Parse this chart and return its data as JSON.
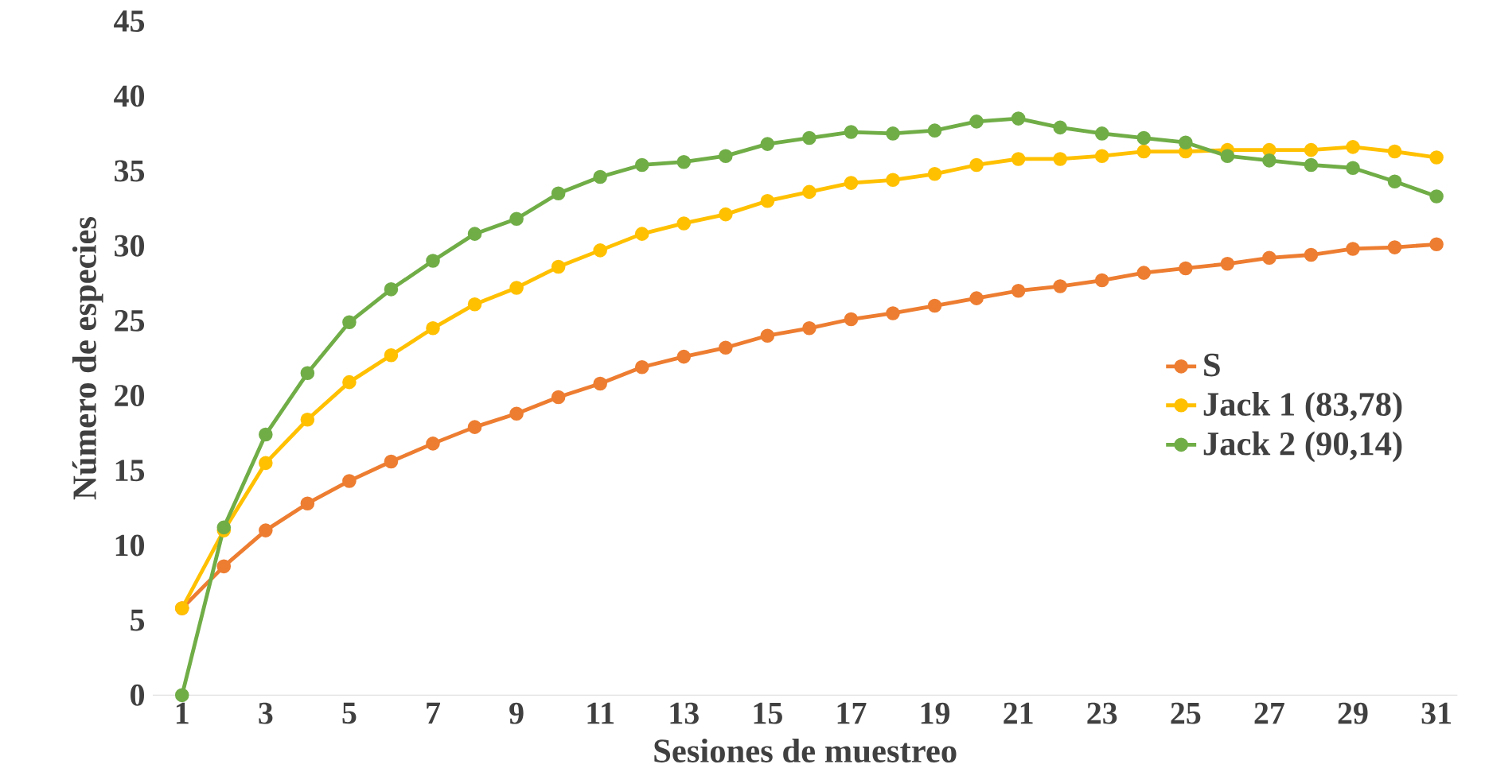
{
  "chart_data": {
    "type": "line",
    "xlabel": "Sesiones de muestreo",
    "ylabel": "Número de especies",
    "x": [
      1,
      2,
      3,
      4,
      5,
      6,
      7,
      8,
      9,
      10,
      11,
      12,
      13,
      14,
      15,
      16,
      17,
      18,
      19,
      20,
      21,
      22,
      23,
      24,
      25,
      26,
      27,
      28,
      29,
      30,
      31
    ],
    "xlim": [
      0.3,
      31.5
    ],
    "xticks": [
      1,
      3,
      5,
      7,
      9,
      11,
      13,
      15,
      17,
      19,
      21,
      23,
      25,
      27,
      29,
      31
    ],
    "ylim": [
      0,
      45
    ],
    "yticks": [
      0,
      5,
      10,
      15,
      20,
      25,
      30,
      35,
      40,
      45
    ],
    "series": [
      {
        "name": "S",
        "color": "#ed7d31",
        "values": [
          5.8,
          8.6,
          11,
          12.8,
          14.3,
          15.6,
          16.8,
          17.9,
          18.8,
          19.9,
          20.8,
          21.9,
          22.6,
          23.2,
          24,
          24.5,
          25.1,
          25.5,
          26,
          26.5,
          27,
          27.3,
          27.7,
          28.2,
          28.5,
          28.8,
          29.2,
          29.4,
          29.8,
          29.9,
          30.1
        ]
      },
      {
        "name": "Jack 1 (83,78)",
        "color": "#ffc000",
        "values": [
          5.8,
          11,
          15.5,
          18.4,
          20.9,
          22.7,
          24.5,
          26.1,
          27.2,
          28.6,
          29.7,
          30.8,
          31.5,
          32.1,
          33,
          33.6,
          34.2,
          34.4,
          34.8,
          35.4,
          35.8,
          35.8,
          36,
          36.3,
          36.3,
          36.4,
          36.4,
          36.4,
          36.6,
          36.3,
          35.9
        ]
      },
      {
        "name": "Jack 2 (90,14)",
        "color": "#70ad47",
        "values": [
          0,
          11.2,
          17.4,
          21.5,
          24.9,
          27.1,
          29,
          30.8,
          31.8,
          33.5,
          34.6,
          35.4,
          35.6,
          36,
          36.8,
          37.2,
          37.6,
          37.5,
          37.7,
          38.3,
          38.5,
          37.9,
          37.5,
          37.2,
          36.9,
          36,
          35.7,
          35.4,
          35.2,
          34.3,
          33.3
        ]
      }
    ],
    "marker": "circle",
    "line_style": "solid",
    "grid": false,
    "legend": "right"
  }
}
